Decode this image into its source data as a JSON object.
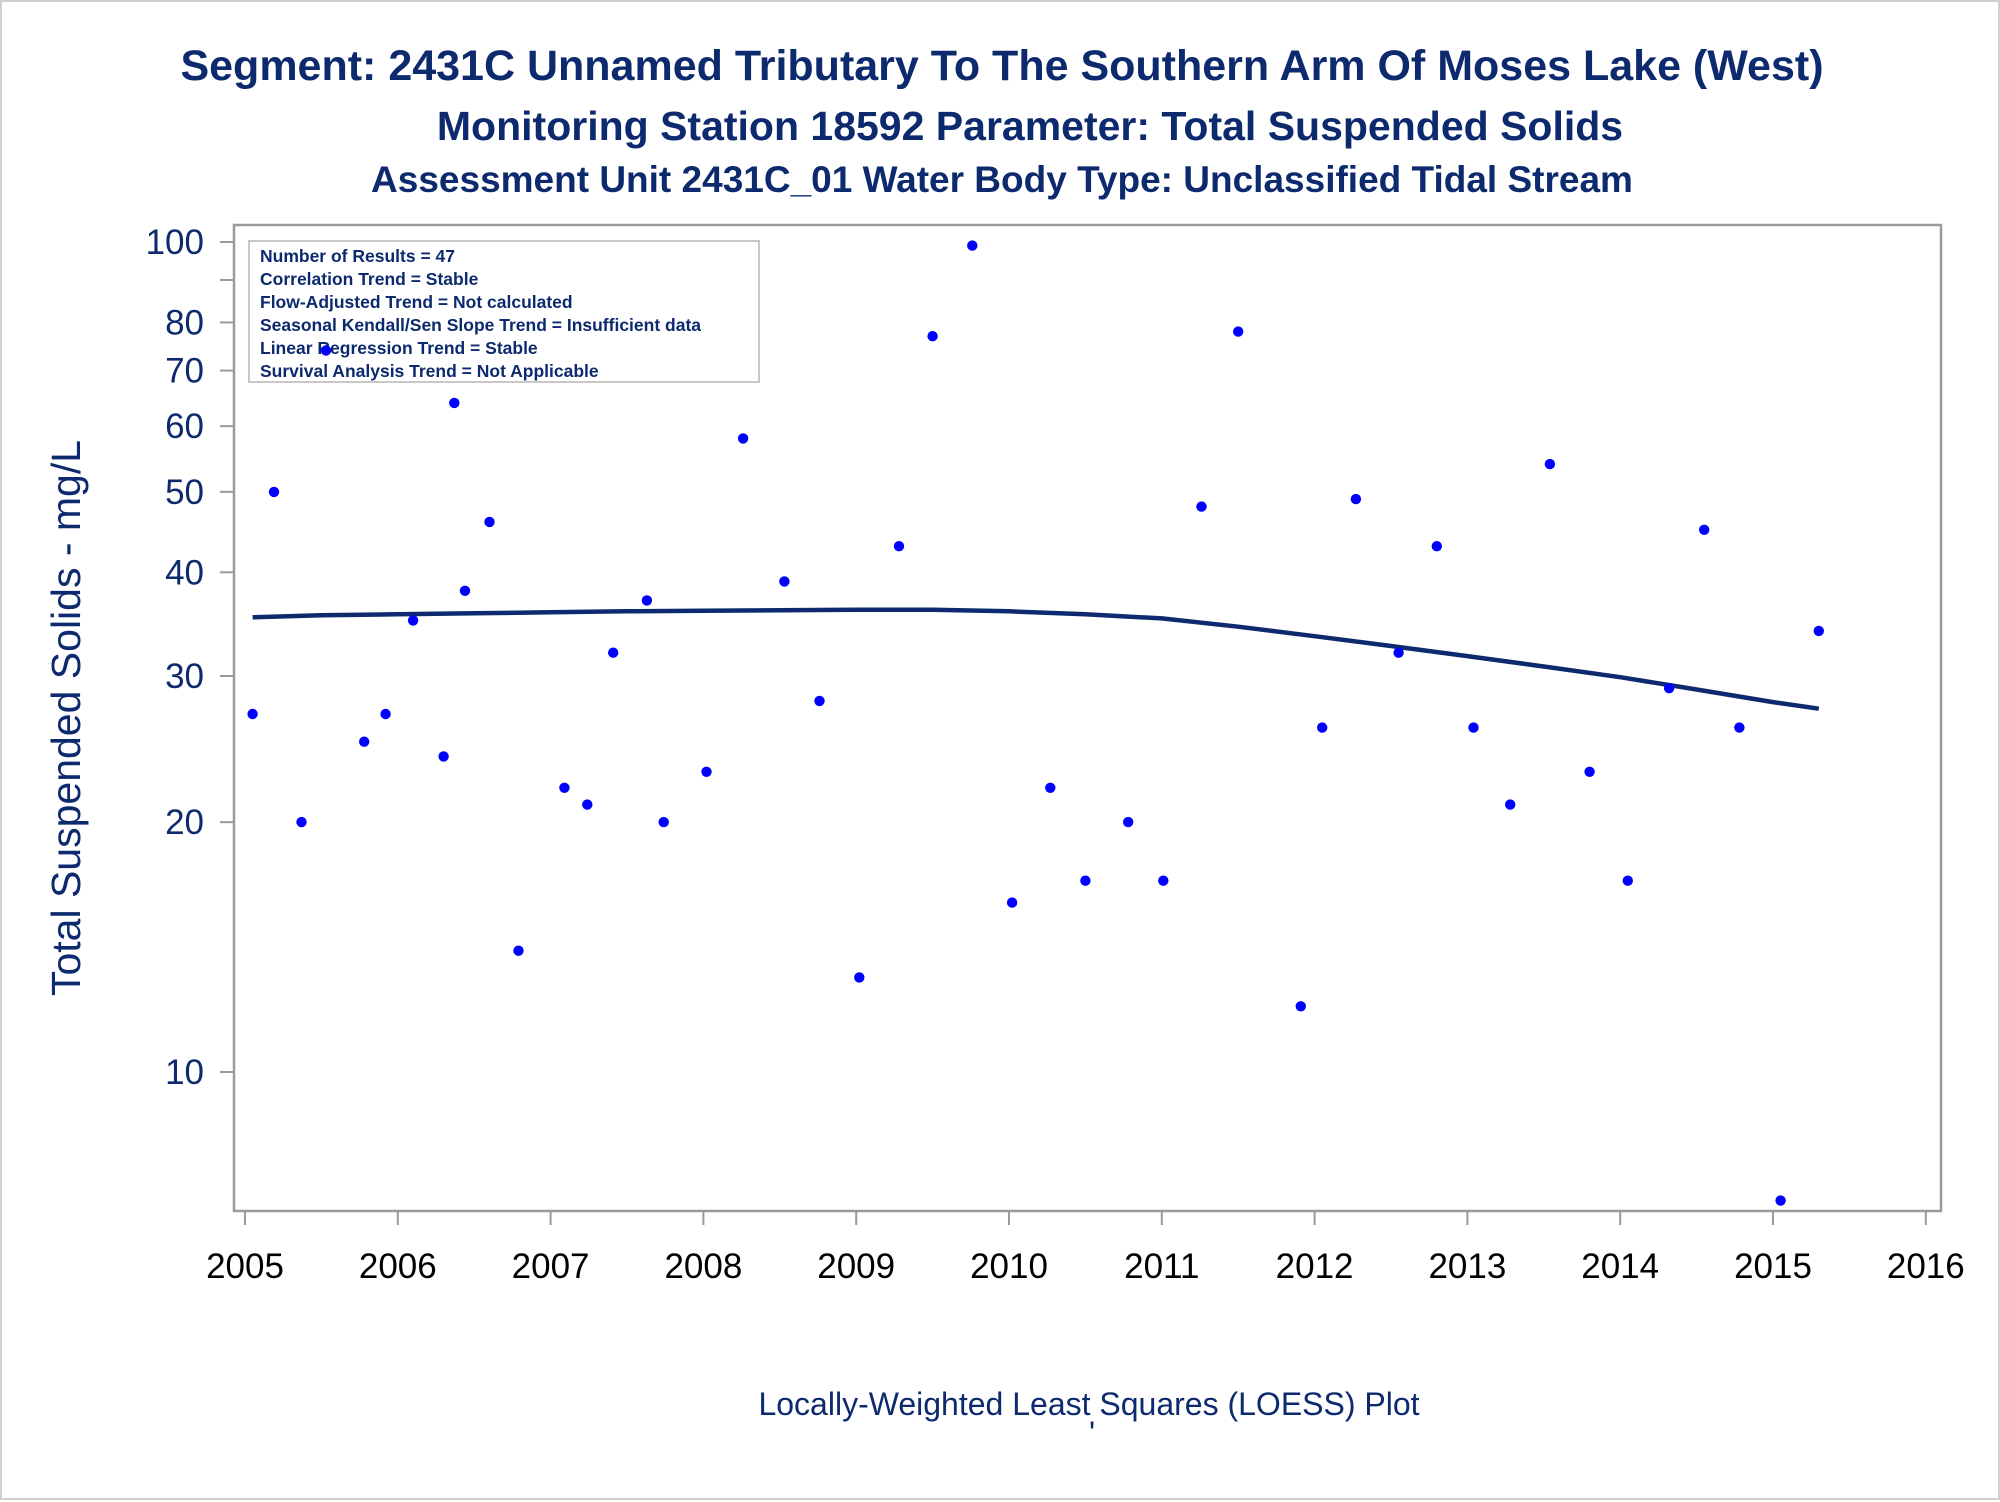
{
  "titles": {
    "line1": "Segment: 2431C  Unnamed Tributary To The Southern Arm Of Moses Lake (West)",
    "line2": "Monitoring Station 18592 Parameter: Total Suspended Solids",
    "line3": "Assessment Unit 2431C_01   Water Body Type: Unclassified Tidal Stream"
  },
  "stats_box": [
    "Number of Results = 47",
    "Correlation Trend = Stable",
    "Flow-Adjusted Trend = Not calculated",
    "Seasonal Kendall/Sen Slope Trend = Insufficient data",
    "Linear Regression Trend = Stable",
    "Survival Analysis Trend = Not Applicable"
  ],
  "footer": {
    "caption": "Locally-Weighted Least Squares (LOESS) Plot",
    "mark": "'"
  },
  "colors": {
    "title": "#0d2a6e",
    "points": "#0000ff",
    "loess": "#0d2a6e",
    "axis": "#9a9a9a"
  },
  "chart_data": {
    "type": "scatter",
    "ylabel": "Total Suspended Solids - mg/L",
    "xlabel": "",
    "y_scale": "log",
    "xlim": [
      2004.97,
      2016.1
    ],
    "ylim": [
      7,
      105
    ],
    "x_ticks": [
      2005,
      2006,
      2007,
      2008,
      2009,
      2010,
      2011,
      2012,
      2013,
      2014,
      2015,
      2016
    ],
    "y_ticks_labeled": [
      10,
      20,
      30,
      40,
      50,
      60,
      70,
      80,
      100
    ],
    "y_ticks_minor": [
      90
    ],
    "grid": false,
    "legend": "none",
    "points": [
      {
        "x": 2005.05,
        "y": 27
      },
      {
        "x": 2005.19,
        "y": 50
      },
      {
        "x": 2005.37,
        "y": 20
      },
      {
        "x": 2005.53,
        "y": 74
      },
      {
        "x": 2005.78,
        "y": 25
      },
      {
        "x": 2005.92,
        "y": 27
      },
      {
        "x": 2006.1,
        "y": 35
      },
      {
        "x": 2006.3,
        "y": 24
      },
      {
        "x": 2006.37,
        "y": 64
      },
      {
        "x": 2006.44,
        "y": 38
      },
      {
        "x": 2006.6,
        "y": 46
      },
      {
        "x": 2006.79,
        "y": 14
      },
      {
        "x": 2007.09,
        "y": 22
      },
      {
        "x": 2007.24,
        "y": 21
      },
      {
        "x": 2007.41,
        "y": 32
      },
      {
        "x": 2007.63,
        "y": 37
      },
      {
        "x": 2007.74,
        "y": 20
      },
      {
        "x": 2008.02,
        "y": 23
      },
      {
        "x": 2008.26,
        "y": 58
      },
      {
        "x": 2008.53,
        "y": 39
      },
      {
        "x": 2008.76,
        "y": 28
      },
      {
        "x": 2009.02,
        "y": 13
      },
      {
        "x": 2009.28,
        "y": 43
      },
      {
        "x": 2009.5,
        "y": 77
      },
      {
        "x": 2009.76,
        "y": 99
      },
      {
        "x": 2010.02,
        "y": 16
      },
      {
        "x": 2010.27,
        "y": 22
      },
      {
        "x": 2010.5,
        "y": 17
      },
      {
        "x": 2010.78,
        "y": 20
      },
      {
        "x": 2011.01,
        "y": 17
      },
      {
        "x": 2011.26,
        "y": 48
      },
      {
        "x": 2011.5,
        "y": 78
      },
      {
        "x": 2011.91,
        "y": 12
      },
      {
        "x": 2012.05,
        "y": 26
      },
      {
        "x": 2012.27,
        "y": 49
      },
      {
        "x": 2012.55,
        "y": 32
      },
      {
        "x": 2012.8,
        "y": 43
      },
      {
        "x": 2013.04,
        "y": 26
      },
      {
        "x": 2013.28,
        "y": 21
      },
      {
        "x": 2013.54,
        "y": 54
      },
      {
        "x": 2013.8,
        "y": 23
      },
      {
        "x": 2014.05,
        "y": 17
      },
      {
        "x": 2014.32,
        "y": 29
      },
      {
        "x": 2014.55,
        "y": 45
      },
      {
        "x": 2014.78,
        "y": 26
      },
      {
        "x": 2015.05,
        "y": 7
      },
      {
        "x": 2015.3,
        "y": 34
      }
    ],
    "loess": [
      {
        "x": 2005.05,
        "y": 35.3
      },
      {
        "x": 2005.5,
        "y": 35.5
      },
      {
        "x": 2006.0,
        "y": 35.6
      },
      {
        "x": 2006.5,
        "y": 35.7
      },
      {
        "x": 2007.0,
        "y": 35.8
      },
      {
        "x": 2007.5,
        "y": 35.9
      },
      {
        "x": 2008.0,
        "y": 35.95
      },
      {
        "x": 2008.5,
        "y": 36.0
      },
      {
        "x": 2009.0,
        "y": 36.05
      },
      {
        "x": 2009.5,
        "y": 36.05
      },
      {
        "x": 2010.0,
        "y": 35.9
      },
      {
        "x": 2010.5,
        "y": 35.6
      },
      {
        "x": 2011.0,
        "y": 35.2
      },
      {
        "x": 2011.5,
        "y": 34.4
      },
      {
        "x": 2012.0,
        "y": 33.5
      },
      {
        "x": 2012.5,
        "y": 32.6
      },
      {
        "x": 2013.0,
        "y": 31.7
      },
      {
        "x": 2013.5,
        "y": 30.8
      },
      {
        "x": 2014.0,
        "y": 29.9
      },
      {
        "x": 2014.5,
        "y": 28.9
      },
      {
        "x": 2015.0,
        "y": 27.9
      },
      {
        "x": 2015.3,
        "y": 27.4
      }
    ]
  }
}
